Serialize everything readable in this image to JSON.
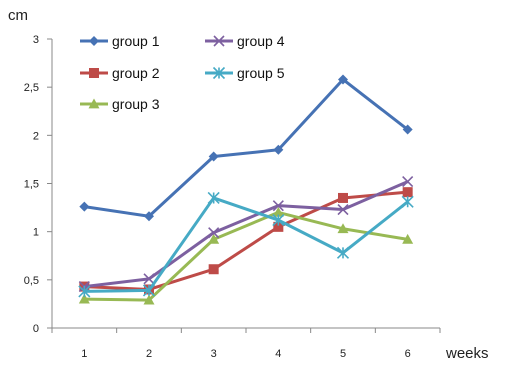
{
  "chart_data": {
    "type": "line",
    "ylabel": "cm",
    "xlabel": "weeks",
    "x": [
      1,
      2,
      3,
      4,
      5,
      6
    ],
    "x_tick_labels": [
      "1",
      "2",
      "3",
      "4",
      "5",
      "6"
    ],
    "ylim": [
      0,
      3
    ],
    "y_tick_labels": [
      "0",
      "0,5",
      "1",
      "1,5",
      "2",
      "2,5",
      "3"
    ],
    "grid": false,
    "legend_position": "top-left",
    "series": [
      {
        "name": "group 1",
        "values": [
          1.26,
          1.16,
          1.78,
          1.85,
          2.58,
          2.06
        ],
        "color": "#4672b4",
        "marker": "diamond"
      },
      {
        "name": "group 2",
        "values": [
          0.43,
          0.4,
          0.61,
          1.05,
          1.35,
          1.41
        ],
        "color": "#be4b48",
        "marker": "square"
      },
      {
        "name": "group 3",
        "values": [
          0.3,
          0.29,
          0.92,
          1.2,
          1.03,
          0.92
        ],
        "color": "#98b954",
        "marker": "triangle"
      },
      {
        "name": "group 4",
        "values": [
          0.43,
          0.51,
          0.99,
          1.27,
          1.23,
          1.52
        ],
        "color": "#7d60a0",
        "marker": "x"
      },
      {
        "name": "group 5",
        "values": [
          0.38,
          0.39,
          1.35,
          1.12,
          0.78,
          1.31
        ],
        "color": "#46aac5",
        "marker": "star"
      }
    ]
  }
}
